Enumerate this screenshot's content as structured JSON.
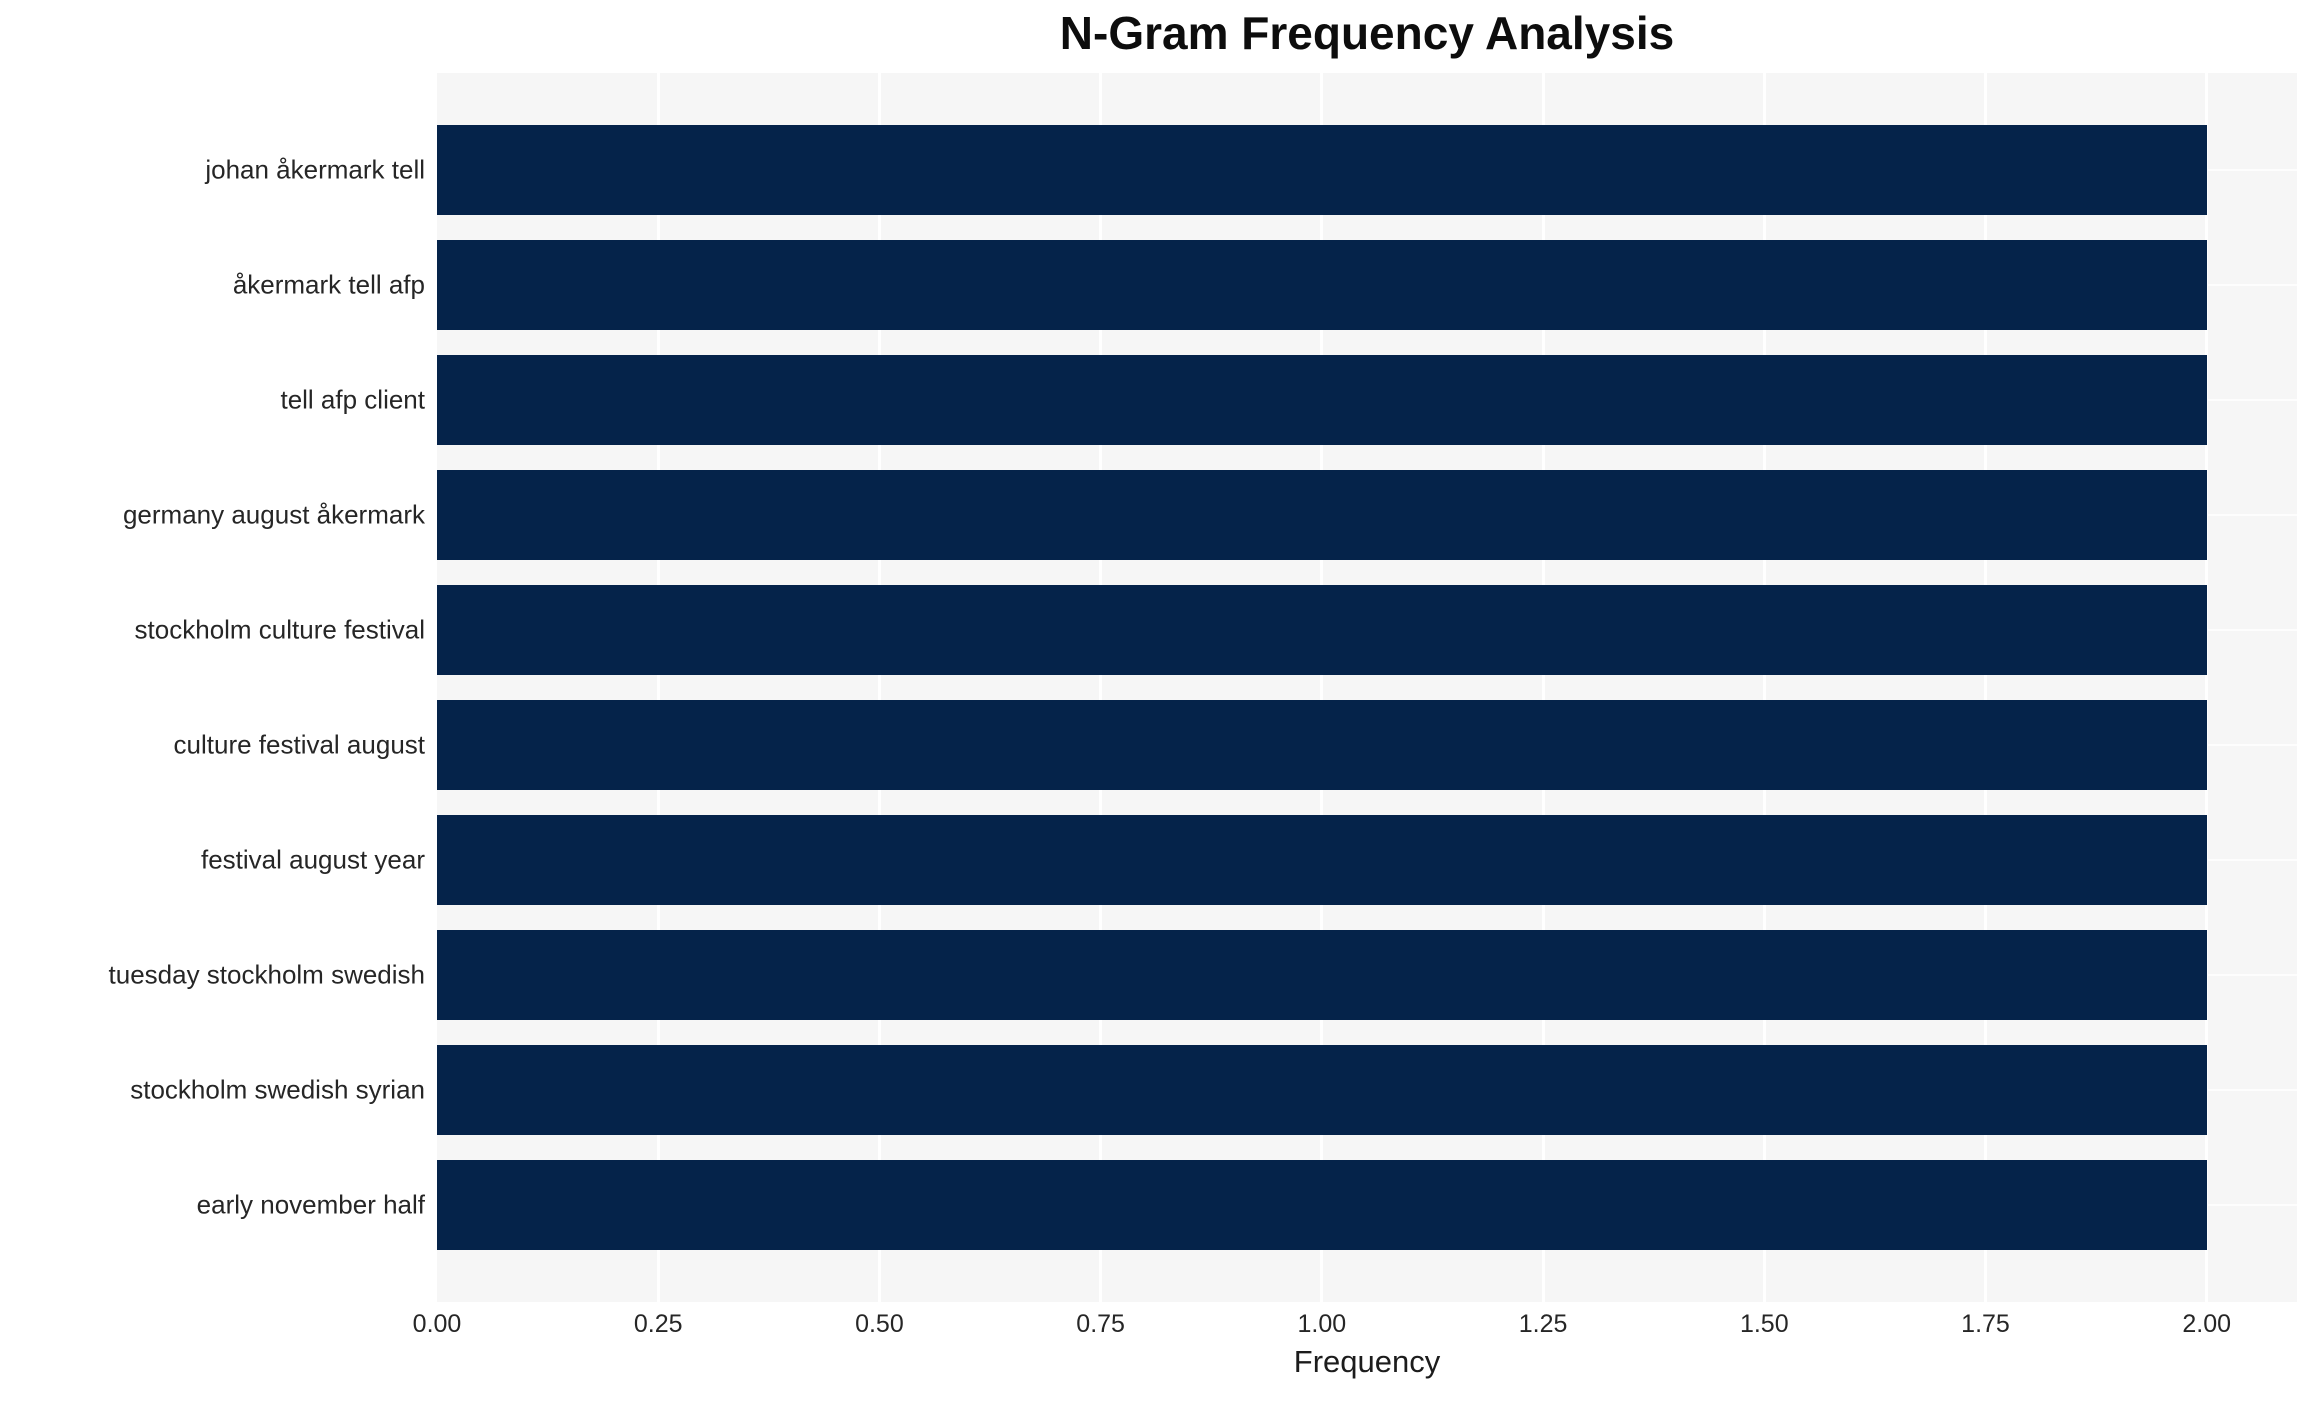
{
  "title": "N-Gram Frequency Analysis",
  "colors": {
    "bar": "#05234a",
    "plot_background": "#f6f6f6",
    "gridline": "#ffffff",
    "title_text": "#0d0d0d",
    "label_text": "#262626"
  },
  "chart_data": {
    "type": "bar",
    "orientation": "horizontal",
    "title": "N-Gram Frequency Analysis",
    "xlabel": "Frequency",
    "ylabel": "",
    "categories": [
      "johan åkermark tell",
      "åkermark tell afp",
      "tell afp client",
      "germany august åkermark",
      "stockholm culture festival",
      "culture festival august",
      "festival august year",
      "tuesday stockholm swedish",
      "stockholm swedish syrian",
      "early november half"
    ],
    "values": [
      2,
      2,
      2,
      2,
      2,
      2,
      2,
      2,
      2,
      2
    ],
    "xlim": [
      0,
      2.102
    ],
    "xticks": [
      0,
      0.25,
      0.5,
      0.75,
      1.0,
      1.25,
      1.5,
      1.75,
      2.0
    ],
    "xtick_labels": [
      "0.00",
      "0.25",
      "0.50",
      "0.75",
      "1.00",
      "1.25",
      "1.50",
      "1.75",
      "2.00"
    ],
    "grid": true,
    "legend": false
  }
}
